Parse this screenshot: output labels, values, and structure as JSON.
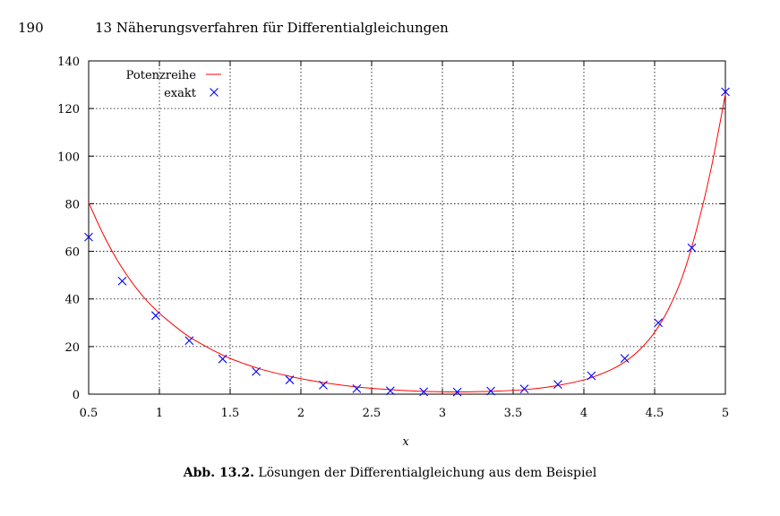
{
  "header": {
    "page_number": "190",
    "chapter_title": "13  Näherungsverfahren für Differentialgleichungen"
  },
  "caption": {
    "label": "Abb. 13.2.",
    "text": " Lösungen der Differentialgleichung aus dem Beispiel"
  },
  "chart_data": {
    "type": "line",
    "title": "",
    "xlabel": "x",
    "ylabel": "",
    "xlim": [
      0.5,
      5
    ],
    "ylim": [
      0,
      140
    ],
    "xticks": [
      0.5,
      1,
      1.5,
      2,
      2.5,
      3,
      3.5,
      4,
      4.5,
      5
    ],
    "xtick_labels": [
      "0.5",
      "1",
      "1.5",
      "2",
      "2.5",
      "3",
      "3.5",
      "4",
      "4.5",
      "5"
    ],
    "yticks": [
      0,
      20,
      40,
      60,
      80,
      100,
      120,
      140
    ],
    "ytick_labels": [
      "0",
      "20",
      "40",
      "60",
      "80",
      "100",
      "120",
      "140"
    ],
    "grid": true,
    "legend_position": "top-left",
    "series": [
      {
        "name": "Potenzreihe",
        "style": "line",
        "color": "#ff0000",
        "x": [
          0.5,
          0.6,
          0.7,
          0.8,
          0.9,
          1.0,
          1.1,
          1.2,
          1.3,
          1.4,
          1.5,
          1.6,
          1.7,
          1.8,
          1.9,
          2.0,
          2.2,
          2.4,
          2.6,
          2.8,
          3.0,
          3.2,
          3.4,
          3.6,
          3.8,
          4.0,
          4.1,
          4.2,
          4.3,
          4.4,
          4.5,
          4.6,
          4.7,
          4.8,
          4.9,
          5.0
        ],
        "y": [
          80.5,
          67.5,
          56.5,
          47.5,
          40.0,
          34.0,
          29.0,
          24.5,
          21.0,
          17.8,
          15.0,
          12.8,
          10.8,
          9.2,
          7.8,
          6.5,
          4.5,
          3.0,
          2.0,
          1.3,
          1.0,
          1.0,
          1.3,
          2.0,
          3.5,
          6.0,
          8.0,
          10.5,
          14.0,
          19.0,
          26.0,
          36.0,
          50.0,
          70.0,
          95.0,
          126.0
        ]
      },
      {
        "name": "exakt",
        "style": "marker",
        "marker": "x",
        "color": "#0000ff",
        "x": [
          0.5,
          0.737,
          0.974,
          1.211,
          1.447,
          1.684,
          1.921,
          2.158,
          2.395,
          2.632,
          2.868,
          3.105,
          3.342,
          3.579,
          3.816,
          4.053,
          4.289,
          4.526,
          4.763,
          5.0
        ],
        "y": [
          66.0,
          47.5,
          33.0,
          22.5,
          14.8,
          9.5,
          6.0,
          3.8,
          2.3,
          1.4,
          1.0,
          0.9,
          1.3,
          2.2,
          4.1,
          7.7,
          15.0,
          30.0,
          61.5,
          127.0
        ]
      }
    ]
  }
}
